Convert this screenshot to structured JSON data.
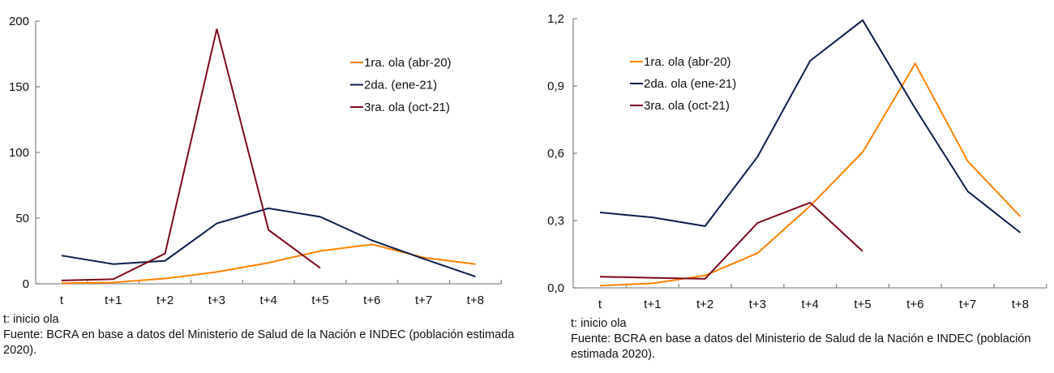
{
  "colors": {
    "wave1": "#ff8200",
    "wave2": "#0c1e4e",
    "wave3": "#7d0a1c"
  },
  "chart_data": [
    {
      "type": "line",
      "title": "",
      "xlabel": "",
      "ylabel": "",
      "categories": [
        "t",
        "t+1",
        "t+2",
        "t+3",
        "t+4",
        "t+5",
        "t+6",
        "t+7",
        "t+8"
      ],
      "ylim": [
        0,
        200
      ],
      "yticks": [
        0,
        50,
        100,
        150,
        200
      ],
      "ytick_labels": [
        "0",
        "50",
        "100",
        "150",
        "200"
      ],
      "grid": false,
      "legend_position": "top-right",
      "series": [
        {
          "name": "1ra. ola (abr-20)",
          "color_key": "wave1",
          "values": [
            0.5,
            1,
            4,
            9,
            16,
            25,
            30,
            20,
            15
          ]
        },
        {
          "name": "2da. (ene-21)",
          "color_key": "wave2",
          "values": [
            21.5,
            15,
            17.5,
            46,
            57.5,
            51,
            33,
            19,
            5.5
          ]
        },
        {
          "name": "3ra. ola (oct-21)",
          "color_key": "wave3",
          "values": [
            2.5,
            3.5,
            23,
            194,
            41,
            12,
            null,
            null,
            null
          ]
        }
      ]
    },
    {
      "type": "line",
      "title": "",
      "xlabel": "",
      "ylabel": "",
      "categories": [
        "t",
        "t+1",
        "t+2",
        "t+3",
        "t+4",
        "t+5",
        "t+6",
        "t+7",
        "t+8"
      ],
      "ylim": [
        0,
        1.2
      ],
      "yticks": [
        0,
        0.3,
        0.6,
        0.9,
        1.2
      ],
      "ytick_labels": [
        "0,0",
        "0,3",
        "0,6",
        "0,9",
        "1,2"
      ],
      "grid": false,
      "legend_position": "top-left",
      "series": [
        {
          "name": "1ra. ola (abr-20)",
          "color_key": "wave1",
          "values": [
            0.01,
            0.02,
            0.055,
            0.155,
            0.365,
            0.605,
            1.0,
            0.565,
            0.318
          ]
        },
        {
          "name": "2da. ola (ene-21)",
          "color_key": "wave2",
          "values": [
            0.336,
            0.314,
            0.275,
            0.585,
            1.012,
            1.193,
            0.8,
            0.43,
            0.246
          ]
        },
        {
          "name": "3ra. ola (oct-21)",
          "color_key": "wave3",
          "values": [
            0.05,
            0.045,
            0.04,
            0.29,
            0.38,
            0.163,
            null,
            null,
            null
          ]
        }
      ]
    }
  ],
  "footnotes": {
    "left": {
      "note": "t: inicio ola",
      "source": "Fuente: BCRA en base a datos del Ministerio de Salud de la Nación e INDEC (población estimada 2020)."
    },
    "right": {
      "note": "t: inicio ola",
      "source": "Fuente: BCRA en base a datos del Ministerio de Salud de la Nación e INDEC  (población estimada 2020)."
    }
  }
}
